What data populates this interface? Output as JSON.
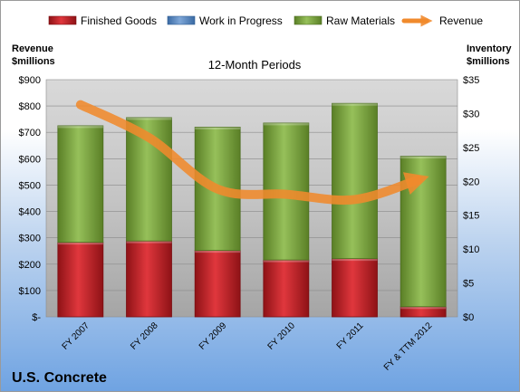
{
  "chart_data": {
    "type": "bar",
    "stacked": true,
    "title": "U.S. Concrete",
    "subtitle": "12-Month Periods",
    "y_left_label": [
      "Revenue",
      "$millions"
    ],
    "y_right_label": [
      "Inventory",
      "$millions"
    ],
    "categories": [
      "FY 2007",
      "FY 2008",
      "FY 2009",
      "FY 2010",
      "FY 2011",
      "FY & TTM 2012"
    ],
    "y_left_ticks": [
      "$-",
      "$100",
      "$200",
      "$300",
      "$400",
      "$500",
      "$600",
      "$700",
      "$800",
      "$900"
    ],
    "y_right_ticks": [
      "$0",
      "$5",
      "$10",
      "$15",
      "$20",
      "$25",
      "$30",
      "$35"
    ],
    "y_left_range": [
      0,
      900
    ],
    "y_right_range": [
      0,
      35
    ],
    "legend_position": "top",
    "series": [
      {
        "name": "Finished Goods",
        "kind": "bar",
        "axis": "right",
        "color": "#c0262d",
        "values": [
          11.0,
          11.2,
          9.8,
          8.4,
          8.6,
          1.5
        ]
      },
      {
        "name": "Work in Progress",
        "kind": "bar",
        "axis": "right",
        "color": "#4f81bd",
        "values": [
          0,
          0,
          0,
          0,
          0,
          0
        ]
      },
      {
        "name": "Raw Materials",
        "kind": "bar",
        "axis": "right",
        "color": "#77a33b",
        "values": [
          17.2,
          18.2,
          18.2,
          20.2,
          22.9,
          22.2
        ]
      },
      {
        "name": "Revenue",
        "kind": "line",
        "axis": "left",
        "color": "#f08a2c",
        "values": [
          805,
          680,
          485,
          465,
          445,
          530
        ]
      }
    ]
  }
}
